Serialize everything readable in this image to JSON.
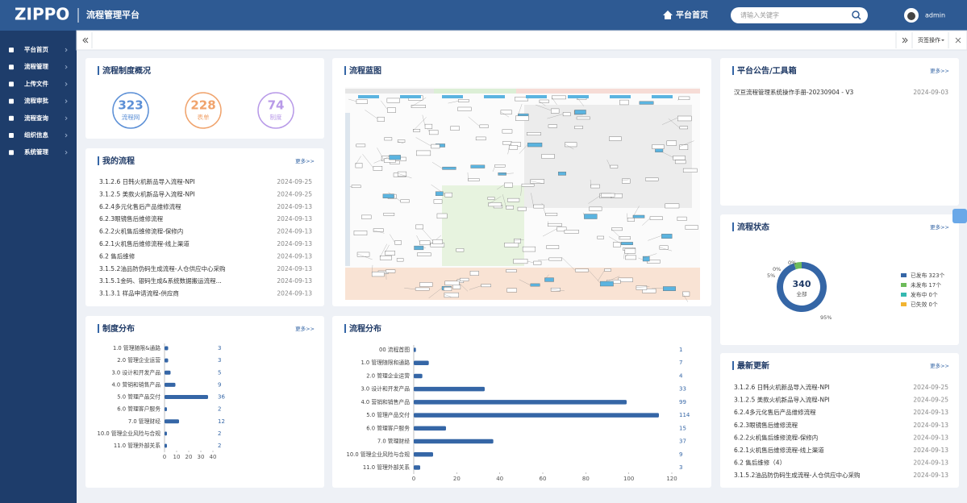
{
  "header": {
    "logo": "ZIPPO",
    "title": "流程管理平台",
    "home": "平台首页",
    "search_placeholder": "请输入关键字",
    "user": "admin"
  },
  "sidebar": {
    "items": [
      "平台首页",
      "流程管理",
      "上传文件",
      "流程审批",
      "流程查询",
      "组织信息",
      "系统管理"
    ]
  },
  "tabbar": {
    "action": "页签操作"
  },
  "overview": {
    "title": "流程制度概况",
    "stats": [
      {
        "value": 323,
        "label": "流程网"
      },
      {
        "value": 228,
        "label": "表单"
      },
      {
        "value": 74,
        "label": "制度"
      }
    ]
  },
  "my_processes": {
    "title": "我的流程",
    "more": "更多>>",
    "items": [
      {
        "name": "3.1.2.6 日韩火机新品导入流程-NPI",
        "date": "2024-09-25"
      },
      {
        "name": "3.1.2.5 美款火机新品导入流程-NPI",
        "date": "2024-09-25"
      },
      {
        "name": "6.2.4多元化售后产品维修流程",
        "date": "2024-09-13"
      },
      {
        "name": "6.2.3眼镜售后维修流程",
        "date": "2024-09-13"
      },
      {
        "name": "6.2.2火机售后维修流程-保修内",
        "date": "2024-09-13"
      },
      {
        "name": "6.2.1火机售后维修流程-线上渠道",
        "date": "2024-09-13"
      },
      {
        "name": "6.2 售后维修",
        "date": "2024-09-13"
      },
      {
        "name": "3.1.5.2油品防伪码生成流程-人仓供应中心采购",
        "date": "2024-09-13"
      },
      {
        "name": "3.1.5.1金码、银码生成&系统数据搬运流程...",
        "date": "2024-09-13"
      },
      {
        "name": "3.1.3.1 样品申请流程-供应商",
        "date": "2024-09-13"
      }
    ]
  },
  "blueprint": {
    "title": "流程蓝图"
  },
  "notices": {
    "title": "平台公告/工具箱",
    "more": "更多>>",
    "items": [
      {
        "name": "汉亘流程管理系统操作手册-20230904 - V3",
        "date": "2024-09-03"
      }
    ]
  },
  "latest": {
    "title": "最新更新",
    "more": "更多>>",
    "items": [
      {
        "name": "3.1.2.6 日韩火机新品导入流程-NPI",
        "date": "2024-09-25"
      },
      {
        "name": "3.1.2.5 美款火机新品导入流程-NPI",
        "date": "2024-09-25"
      },
      {
        "name": "6.2.4多元化售后产品维修流程",
        "date": "2024-09-13"
      },
      {
        "name": "6.2.3眼镜售后维修流程",
        "date": "2024-09-13"
      },
      {
        "name": "6.2.2火机售后维修流程-保修内",
        "date": "2024-09-13"
      },
      {
        "name": "6.2.1火机售后维修流程-线上渠道",
        "date": "2024-09-13"
      },
      {
        "name": "6.2 售后维修（4）",
        "date": "2024-09-13"
      },
      {
        "name": "3.1.5.2油品防伪码生成流程-人仓供应中心采购",
        "date": "2024-09-13"
      }
    ]
  },
  "chart_data": [
    {
      "type": "bar",
      "orientation": "horizontal",
      "title": "制度分布",
      "more": "更多>>",
      "categories": [
        "1.0 管理随限&通路",
        "2.0 管理企业运营",
        "3.0 设计和开发产品",
        "4.0 营销和销售产品",
        "5.0 管理产品交付",
        "6.0 管理客户服务",
        "7.0 管理财经",
        "10.0 管理企业风险与合规",
        "11.0 管理外部关系"
      ],
      "values": [
        3,
        3,
        5,
        9,
        36,
        2,
        12,
        2,
        2
      ],
      "color": "#3566a6",
      "xlim": [
        0,
        40
      ],
      "xticks": [
        0,
        10,
        20,
        30,
        40
      ]
    },
    {
      "type": "bar",
      "orientation": "horizontal",
      "title": "流程分布",
      "categories": [
        "00 流程首图",
        "1.0 管理随限和通路",
        "2.0 管理企业运营",
        "3.0 设计和开发产品",
        "4.0 营销和销售产品",
        "5.0 管理产品交付",
        "6.0 管理客户服务",
        "7.0 管理财经",
        "10.0 管理企业风险与合规",
        "11.0 管理外部关系"
      ],
      "values": [
        1,
        7,
        4,
        33,
        99,
        114,
        15,
        37,
        9,
        3
      ],
      "color": "#3566a6",
      "xlim": [
        0,
        120
      ],
      "xticks": [
        0,
        20,
        40,
        60,
        80,
        100,
        120
      ]
    },
    {
      "type": "donut",
      "title": "流程状态",
      "more": "更多>>",
      "categories": [
        "已发布 323个",
        "未发布 17个",
        "发布中 0个",
        "已失效 0个"
      ],
      "values": [
        323,
        17,
        0,
        0
      ],
      "value_labels": [
        "95%",
        "5%",
        "0%",
        "0%"
      ],
      "colors": [
        "#3566a6",
        "#6dbb5a",
        "#35b9b1",
        "#f2b431"
      ],
      "total": 340,
      "total_label": "全部"
    }
  ]
}
